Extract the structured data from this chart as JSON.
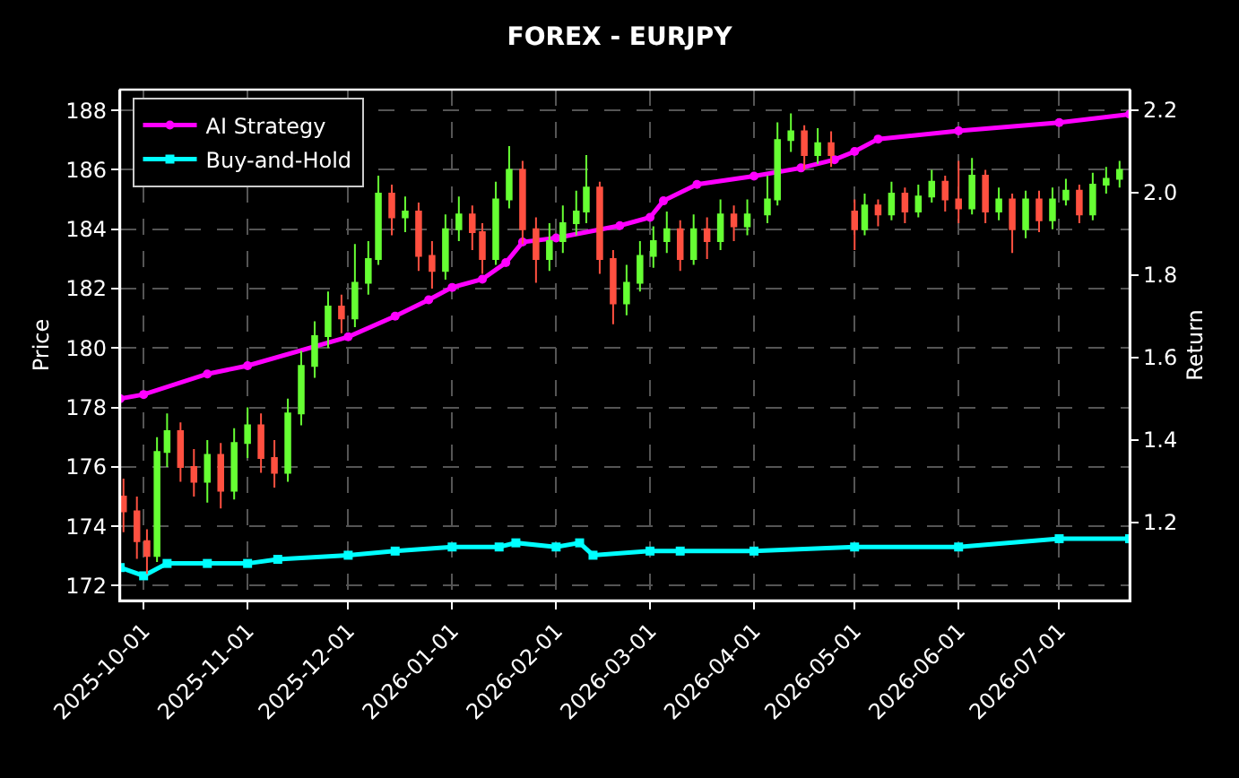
{
  "chart_data": {
    "type": "candlestick",
    "title": "FOREX - EURJPY",
    "ylabel": "Price",
    "y2label": "Return",
    "colors": [
      "#ff5040",
      "#ff5040",
      "#ff5040",
      "#66ff33",
      "#66ff33",
      "#ff5040",
      "#ff5040",
      "#66ff33",
      "#ff5040",
      "#66ff33",
      "#66ff33",
      "#ff5040",
      "#ff5040",
      "#66ff33",
      "#66ff33",
      "#66ff33",
      "#66ff33",
      "#ff5040",
      "#66ff33",
      "#66ff33",
      "#66ff33",
      "#ff5040",
      "#66ff33",
      "#ff5040",
      "#ff5040",
      "#66ff33",
      "#66ff33",
      "#ff5040",
      "#ff5040",
      "#66ff33",
      "#66ff33",
      "#ff5040",
      "#ff5040",
      "#66ff33",
      "#66ff33",
      "#66ff33",
      "#66ff33",
      "#ff5040",
      "#ff5040",
      "#66ff33",
      "#66ff33",
      "#66ff33",
      "#66ff33",
      "#ff5040",
      "#66ff33",
      "#ff5040",
      "#66ff33",
      "#ff5040",
      "#66ff33",
      "#66ff33",
      "#66ff33",
      "#66ff33",
      "#ff5040",
      "#66ff33",
      "#ff5040",
      "#ff5040",
      "#66ff33",
      "#ff5040",
      "#66ff33",
      "#ff5040",
      "#66ff33",
      "#66ff33",
      "#ff5040",
      "#ff5040",
      "#66ff33",
      "#ff5040",
      "#66ff33",
      "#ff5040",
      "#66ff33",
      "#ff5040",
      "#66ff33",
      "#66ff33",
      "#ff5040",
      "#66ff33",
      "#66ff33",
      "#66ff33"
    ],
    "x": [
      "2025-09-25",
      "2025-09-29",
      "2025-10-02",
      "2025-10-05",
      "2025-10-08",
      "2025-10-12",
      "2025-10-16",
      "2025-10-20",
      "2025-10-24",
      "2025-10-28",
      "2025-11-01",
      "2025-11-05",
      "2025-11-09",
      "2025-11-13",
      "2025-11-17",
      "2025-11-21",
      "2025-11-25",
      "2025-11-29",
      "2025-12-03",
      "2025-12-07",
      "2025-12-10",
      "2025-12-14",
      "2025-12-18",
      "2025-12-22",
      "2025-12-26",
      "2025-12-30",
      "2026-01-03",
      "2026-01-07",
      "2026-01-10",
      "2026-01-14",
      "2026-01-18",
      "2026-01-22",
      "2026-01-26",
      "2026-01-30",
      "2026-02-03",
      "2026-02-07",
      "2026-02-10",
      "2026-02-14",
      "2026-02-18",
      "2026-02-22",
      "2026-02-26",
      "2026-03-02",
      "2026-03-06",
      "2026-03-10",
      "2026-03-14",
      "2026-03-18",
      "2026-03-22",
      "2026-03-26",
      "2026-03-30",
      "2026-04-05",
      "2026-04-08",
      "2026-04-12",
      "2026-04-16",
      "2026-04-20",
      "2026-04-24",
      "2026-05-01",
      "2026-05-04",
      "2026-05-08",
      "2026-05-12",
      "2026-05-16",
      "2026-05-20",
      "2026-05-24",
      "2026-05-28",
      "2026-06-01",
      "2026-06-05",
      "2026-06-09",
      "2026-06-13",
      "2026-06-17",
      "2026-06-21",
      "2026-06-25",
      "2026-06-29",
      "2026-07-03",
      "2026-07-07",
      "2026-07-11",
      "2026-07-15",
      "2026-07-19"
    ],
    "ohlc": [
      [
        175.0,
        175.6,
        173.8,
        174.5
      ],
      [
        174.5,
        175.0,
        172.9,
        173.5
      ],
      [
        173.5,
        173.9,
        172.4,
        173.0
      ],
      [
        173.0,
        177.0,
        172.8,
        176.5
      ],
      [
        176.5,
        177.8,
        176.0,
        177.2
      ],
      [
        177.2,
        177.5,
        175.5,
        176.0
      ],
      [
        176.0,
        176.6,
        175.0,
        175.5
      ],
      [
        175.5,
        176.9,
        174.8,
        176.4
      ],
      [
        176.4,
        176.8,
        174.6,
        175.2
      ],
      [
        175.2,
        177.3,
        174.9,
        176.8
      ],
      [
        176.8,
        178.0,
        176.3,
        177.4
      ],
      [
        177.4,
        177.8,
        175.8,
        176.3
      ],
      [
        176.3,
        176.9,
        175.3,
        175.8
      ],
      [
        175.8,
        178.3,
        175.5,
        177.8
      ],
      [
        177.8,
        179.9,
        177.4,
        179.4
      ],
      [
        179.4,
        180.9,
        179.0,
        180.4
      ],
      [
        180.4,
        181.9,
        180.0,
        181.4
      ],
      [
        181.4,
        181.8,
        180.5,
        181.0
      ],
      [
        181.0,
        183.5,
        180.7,
        182.2
      ],
      [
        182.2,
        183.6,
        181.8,
        183.0
      ],
      [
        183.0,
        185.8,
        182.8,
        185.2
      ],
      [
        185.2,
        185.5,
        183.8,
        184.4
      ],
      [
        184.4,
        185.1,
        183.9,
        184.6
      ],
      [
        184.6,
        184.9,
        182.6,
        183.1
      ],
      [
        183.1,
        183.6,
        182.0,
        182.6
      ],
      [
        182.6,
        184.5,
        182.3,
        184.0
      ],
      [
        184.0,
        185.1,
        183.6,
        184.5
      ],
      [
        184.5,
        184.8,
        183.3,
        183.9
      ],
      [
        183.9,
        184.2,
        182.5,
        183.0
      ],
      [
        183.0,
        185.6,
        182.8,
        185.0
      ],
      [
        185.0,
        186.8,
        184.7,
        186.0
      ],
      [
        186.0,
        186.3,
        183.5,
        184.0
      ],
      [
        184.0,
        184.4,
        182.2,
        183.0
      ],
      [
        183.0,
        184.2,
        182.6,
        183.6
      ],
      [
        183.6,
        184.8,
        183.2,
        184.2
      ],
      [
        184.2,
        185.3,
        183.8,
        184.6
      ],
      [
        184.6,
        186.5,
        184.2,
        185.4
      ],
      [
        185.4,
        185.6,
        182.5,
        183.0
      ],
      [
        183.0,
        183.3,
        180.8,
        181.5
      ],
      [
        181.5,
        182.8,
        181.1,
        182.2
      ],
      [
        182.2,
        183.6,
        181.9,
        183.1
      ],
      [
        183.1,
        184.1,
        182.7,
        183.6
      ],
      [
        183.6,
        184.6,
        183.2,
        184.0
      ],
      [
        184.0,
        184.3,
        182.6,
        183.0
      ],
      [
        183.0,
        184.5,
        182.8,
        184.0
      ],
      [
        184.0,
        184.4,
        183.0,
        183.6
      ],
      [
        183.6,
        185.0,
        183.3,
        184.5
      ],
      [
        184.5,
        184.8,
        183.6,
        184.1
      ],
      [
        184.1,
        185.0,
        183.8,
        184.5
      ],
      [
        184.5,
        185.8,
        184.2,
        185.0
      ],
      [
        185.0,
        187.6,
        184.8,
        187.0
      ],
      [
        187.0,
        187.9,
        186.6,
        187.3
      ],
      [
        187.3,
        187.5,
        186.0,
        186.5
      ],
      [
        186.5,
        187.4,
        186.2,
        186.9
      ],
      [
        186.9,
        187.3,
        186.1,
        186.5
      ],
      [
        184.6,
        185.0,
        183.3,
        184.0
      ],
      [
        184.0,
        185.2,
        183.8,
        184.8
      ],
      [
        184.8,
        185.0,
        184.1,
        184.5
      ],
      [
        184.5,
        185.6,
        184.3,
        185.2
      ],
      [
        185.2,
        185.4,
        184.2,
        184.6
      ],
      [
        184.6,
        185.5,
        184.4,
        185.1
      ],
      [
        185.1,
        186.0,
        184.9,
        185.6
      ],
      [
        185.6,
        185.8,
        184.6,
        185.0
      ],
      [
        185.0,
        186.3,
        184.2,
        184.7
      ],
      [
        184.7,
        186.4,
        184.5,
        185.8
      ],
      [
        185.8,
        186.0,
        184.2,
        184.6
      ],
      [
        184.6,
        185.4,
        184.3,
        185.0
      ],
      [
        185.0,
        185.2,
        183.2,
        184.0
      ],
      [
        184.0,
        185.3,
        183.7,
        185.0
      ],
      [
        185.0,
        185.3,
        183.9,
        184.3
      ],
      [
        184.3,
        185.4,
        184.0,
        185.0
      ],
      [
        185.0,
        185.7,
        184.8,
        185.3
      ],
      [
        185.3,
        185.5,
        184.2,
        184.5
      ],
      [
        184.5,
        185.9,
        184.3,
        185.5
      ],
      [
        185.5,
        186.1,
        185.2,
        185.7
      ],
      [
        185.7,
        186.3,
        185.4,
        186.0
      ]
    ],
    "series": [
      {
        "name": "AI Strategy",
        "type": "line",
        "axis": "y2",
        "color": "#ff00ff",
        "marker": "circle",
        "x": [
          "2025-09-24",
          "2025-10-01",
          "2025-10-20",
          "2025-11-01",
          "2025-12-01",
          "2025-12-15",
          "2025-12-25",
          "2026-01-01",
          "2026-01-10",
          "2026-01-17",
          "2026-01-22",
          "2026-02-01",
          "2026-02-20",
          "2026-03-01",
          "2026-03-05",
          "2026-03-15",
          "2026-04-01",
          "2026-04-15",
          "2026-04-25",
          "2026-05-01",
          "2026-05-08",
          "2026-06-01",
          "2026-07-01",
          "2026-07-22"
        ],
        "values": [
          1.5,
          1.51,
          1.56,
          1.58,
          1.65,
          1.7,
          1.74,
          1.77,
          1.79,
          1.83,
          1.88,
          1.89,
          1.92,
          1.94,
          1.98,
          2.02,
          2.04,
          2.06,
          2.08,
          2.1,
          2.13,
          2.15,
          2.17,
          2.19
        ]
      },
      {
        "name": "Buy-and-Hold",
        "type": "line",
        "axis": "y2",
        "color": "#00ffff",
        "marker": "square",
        "x": [
          "2025-09-24",
          "2025-10-01",
          "2025-10-08",
          "2025-10-20",
          "2025-11-01",
          "2025-11-10",
          "2025-12-01",
          "2025-12-15",
          "2026-01-01",
          "2026-01-15",
          "2026-01-20",
          "2026-02-01",
          "2026-02-08",
          "2026-02-12",
          "2026-03-01",
          "2026-03-10",
          "2026-04-01",
          "2026-05-01",
          "2026-06-01",
          "2026-07-01",
          "2026-07-22"
        ],
        "values": [
          1.09,
          1.07,
          1.1,
          1.1,
          1.1,
          1.11,
          1.12,
          1.13,
          1.14,
          1.14,
          1.15,
          1.14,
          1.15,
          1.12,
          1.13,
          1.13,
          1.13,
          1.14,
          1.14,
          1.16,
          1.16
        ]
      }
    ],
    "xlim": [
      "2025-09-24",
      "2026-07-22"
    ],
    "xticks": [
      "2025-10-01",
      "2025-11-01",
      "2025-12-01",
      "2026-01-01",
      "2026-02-01",
      "2026-03-01",
      "2026-04-01",
      "2026-05-01",
      "2026-06-01",
      "2026-07-01"
    ],
    "ylim": [
      171.5,
      188.7
    ],
    "yticks": [
      172,
      174,
      176,
      178,
      180,
      182,
      184,
      186,
      188
    ],
    "y2lim": [
      1.01,
      2.25
    ],
    "y2ticks": [
      1.2,
      1.4,
      1.6,
      1.8,
      {
        "value": 2.0,
        "label": "2.0"
      },
      {
        "value": 2.2,
        "label": "2.2"
      }
    ],
    "grid": true,
    "legend": "top left"
  }
}
